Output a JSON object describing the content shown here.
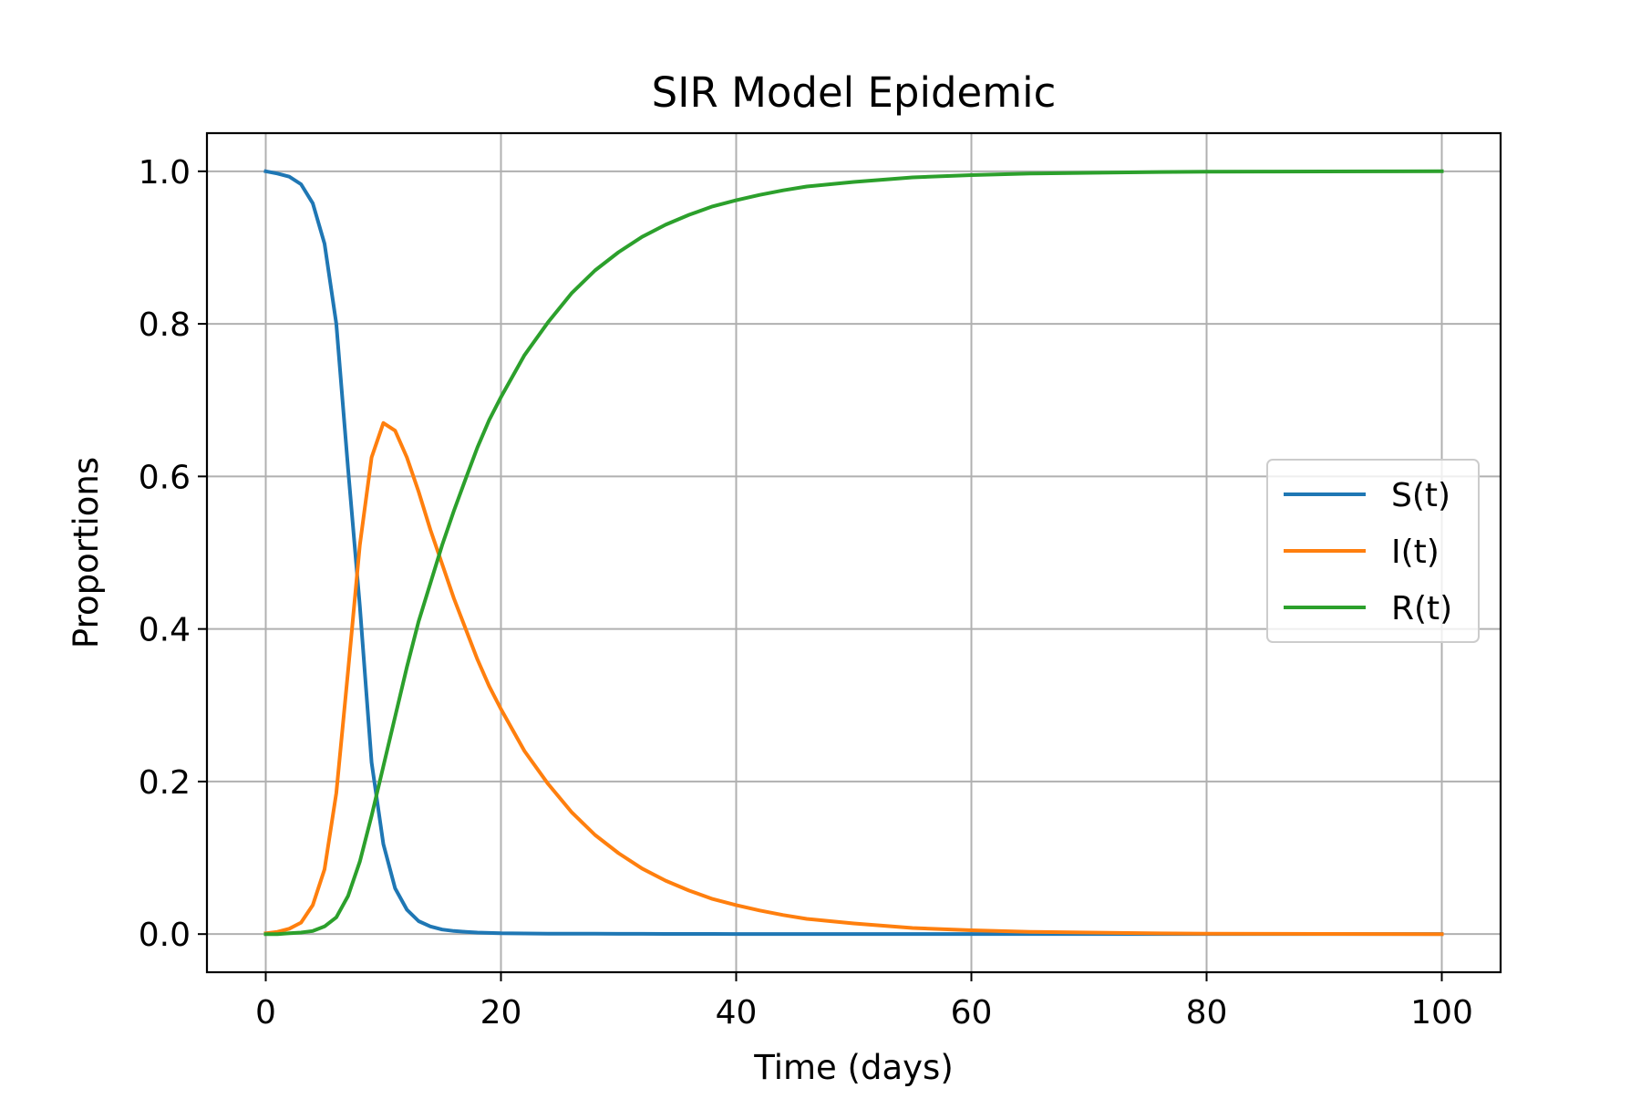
{
  "chart_data": {
    "type": "line",
    "title": "SIR Model Epidemic",
    "xlabel": "Time (days)",
    "ylabel": "Proportions",
    "xlim": [
      -5,
      105
    ],
    "ylim": [
      -0.05,
      1.05
    ],
    "xticks": [
      0,
      20,
      40,
      60,
      80,
      100
    ],
    "xtick_labels": [
      "0",
      "20",
      "40",
      "60",
      "80",
      "100"
    ],
    "yticks": [
      0.0,
      0.2,
      0.4,
      0.6,
      0.8,
      1.0
    ],
    "ytick_labels": [
      "0.0",
      "0.2",
      "0.4",
      "0.6",
      "0.8",
      "1.0"
    ],
    "grid": true,
    "legend_position": "center-right",
    "x": [
      0,
      1,
      2,
      3,
      4,
      5,
      6,
      7,
      8,
      9,
      10,
      11,
      12,
      13,
      14,
      15,
      16,
      17,
      18,
      19,
      20,
      22,
      24,
      26,
      28,
      30,
      32,
      34,
      36,
      38,
      40,
      42,
      44,
      46,
      48,
      50,
      55,
      60,
      65,
      70,
      75,
      80,
      85,
      90,
      95,
      100
    ],
    "series": [
      {
        "name": "S(t)",
        "color": "#1f77b4",
        "values": [
          1.0,
          0.997,
          0.993,
          0.983,
          0.958,
          0.905,
          0.8,
          0.61,
          0.43,
          0.225,
          0.118,
          0.06,
          0.032,
          0.017,
          0.01,
          0.006,
          0.004,
          0.003,
          0.002,
          0.0015,
          0.001,
          0.0008,
          0.0006,
          0.0005,
          0.0004,
          0.0003,
          0.0003,
          0.0002,
          0.0002,
          0.0002,
          0.0001,
          0.0001,
          0.0001,
          0.0001,
          0.0001,
          0.0001,
          0.0001,
          0.0001,
          0.0001,
          0.0001,
          0.0001,
          0.0001,
          0.0001,
          0.0001,
          0.0001,
          0.0001
        ]
      },
      {
        "name": "I(t)",
        "color": "#ff7f0e",
        "values": [
          0.001,
          0.003,
          0.007,
          0.015,
          0.038,
          0.085,
          0.185,
          0.345,
          0.51,
          0.625,
          0.67,
          0.66,
          0.625,
          0.58,
          0.53,
          0.485,
          0.44,
          0.4,
          0.36,
          0.325,
          0.295,
          0.24,
          0.197,
          0.16,
          0.13,
          0.106,
          0.086,
          0.07,
          0.057,
          0.046,
          0.038,
          0.031,
          0.025,
          0.02,
          0.017,
          0.014,
          0.008,
          0.005,
          0.003,
          0.002,
          0.001,
          0.0005,
          0.0003,
          0.0002,
          0.0001,
          0.0
        ]
      },
      {
        "name": "R(t)",
        "color": "#2ca02c",
        "values": [
          0.0,
          0.0,
          0.001,
          0.002,
          0.004,
          0.01,
          0.022,
          0.05,
          0.095,
          0.155,
          0.22,
          0.285,
          0.35,
          0.41,
          0.46,
          0.51,
          0.555,
          0.597,
          0.638,
          0.674,
          0.704,
          0.759,
          0.802,
          0.84,
          0.87,
          0.894,
          0.914,
          0.93,
          0.943,
          0.954,
          0.962,
          0.969,
          0.975,
          0.98,
          0.983,
          0.986,
          0.992,
          0.995,
          0.997,
          0.998,
          0.999,
          0.9995,
          0.9997,
          0.9998,
          0.9999,
          1.0
        ]
      }
    ]
  }
}
